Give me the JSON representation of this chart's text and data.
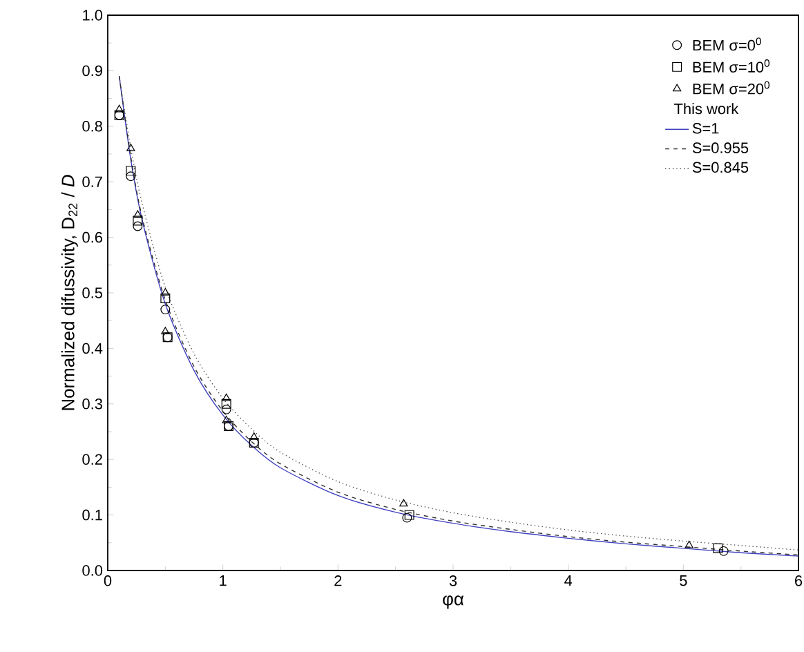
{
  "chart_data": {
    "type": "line",
    "xlabel": "φα",
    "ylabel": "Normalized difussivity, D$_{22}$ / *D*",
    "legend_title": "This work",
    "legend": "top right",
    "xlim": [
      0,
      6
    ],
    "xticks": [
      0,
      1,
      2,
      3,
      4,
      5,
      6
    ],
    "ylim": [
      0,
      1
    ],
    "yticks": [
      {
        "value": 0,
        "label": "0.0"
      },
      0.1,
      0.2,
      0.3,
      0.4,
      0.5,
      0.6,
      0.7,
      0.8,
      0.9,
      {
        "value": 1,
        "label": "1.0"
      }
    ],
    "series": [
      {
        "name": "BEM σ=0$^{0}$",
        "type": "scatter",
        "marker": "circle",
        "color": "#000000",
        "x": [
          0.1,
          0.2,
          0.26,
          0.5,
          0.52,
          1.03,
          1.05,
          1.27,
          2.6,
          5.35
        ],
        "values": [
          0.82,
          0.71,
          0.62,
          0.47,
          0.42,
          0.29,
          0.26,
          0.23,
          0.095,
          0.035
        ]
      },
      {
        "name": "BEM σ=10$^{0}$",
        "type": "scatter",
        "marker": "square",
        "color": "#000000",
        "x": [
          0.1,
          0.2,
          0.26,
          0.5,
          0.52,
          1.03,
          1.05,
          1.27,
          2.62,
          5.3
        ],
        "values": [
          0.82,
          0.72,
          0.63,
          0.49,
          0.42,
          0.3,
          0.26,
          0.23,
          0.1,
          0.04
        ]
      },
      {
        "name": "BEM σ=20$^{0}$",
        "type": "scatter",
        "marker": "triangle",
        "color": "#000000",
        "x": [
          0.1,
          0.2,
          0.26,
          0.5,
          0.5,
          1.03,
          1.03,
          1.27,
          2.57,
          5.05
        ],
        "values": [
          0.83,
          0.76,
          0.64,
          0.5,
          0.43,
          0.31,
          0.27,
          0.24,
          0.12,
          0.045
        ]
      },
      {
        "name": "S=1",
        "line_style": "solid",
        "color": "#4040c0",
        "x": [
          0.1,
          0.2,
          0.3,
          0.5,
          0.75,
          1.0,
          1.25,
          1.5,
          2.0,
          2.5,
          3.0,
          3.5,
          4.0,
          4.5,
          5.0,
          5.5,
          6.0
        ],
        "values": [
          0.89,
          0.74,
          0.63,
          0.48,
          0.36,
          0.28,
          0.225,
          0.185,
          0.135,
          0.105,
          0.085,
          0.07,
          0.058,
          0.048,
          0.04,
          0.032,
          0.026
        ]
      },
      {
        "name": "S=0.955",
        "line_style": "dashed",
        "color": "#303030",
        "x": [
          0.1,
          0.2,
          0.3,
          0.5,
          0.75,
          1.0,
          1.25,
          1.5,
          2.0,
          2.5,
          3.0,
          3.5,
          4.0,
          4.5,
          5.0,
          5.5,
          6.0
        ],
        "values": [
          0.89,
          0.745,
          0.635,
          0.487,
          0.367,
          0.287,
          0.232,
          0.192,
          0.141,
          0.11,
          0.089,
          0.074,
          0.061,
          0.051,
          0.043,
          0.035,
          0.028
        ]
      },
      {
        "name": "S=0.845",
        "line_style": "dotted",
        "color": "#505050",
        "x": [
          0.1,
          0.2,
          0.3,
          0.5,
          0.75,
          1.0,
          1.25,
          1.5,
          2.0,
          2.5,
          3.0,
          3.5,
          4.0,
          4.5,
          5.0,
          5.5,
          6.0
        ],
        "values": [
          0.89,
          0.76,
          0.66,
          0.51,
          0.39,
          0.31,
          0.255,
          0.213,
          0.16,
          0.127,
          0.104,
          0.087,
          0.073,
          0.062,
          0.053,
          0.045,
          0.037
        ]
      }
    ]
  }
}
